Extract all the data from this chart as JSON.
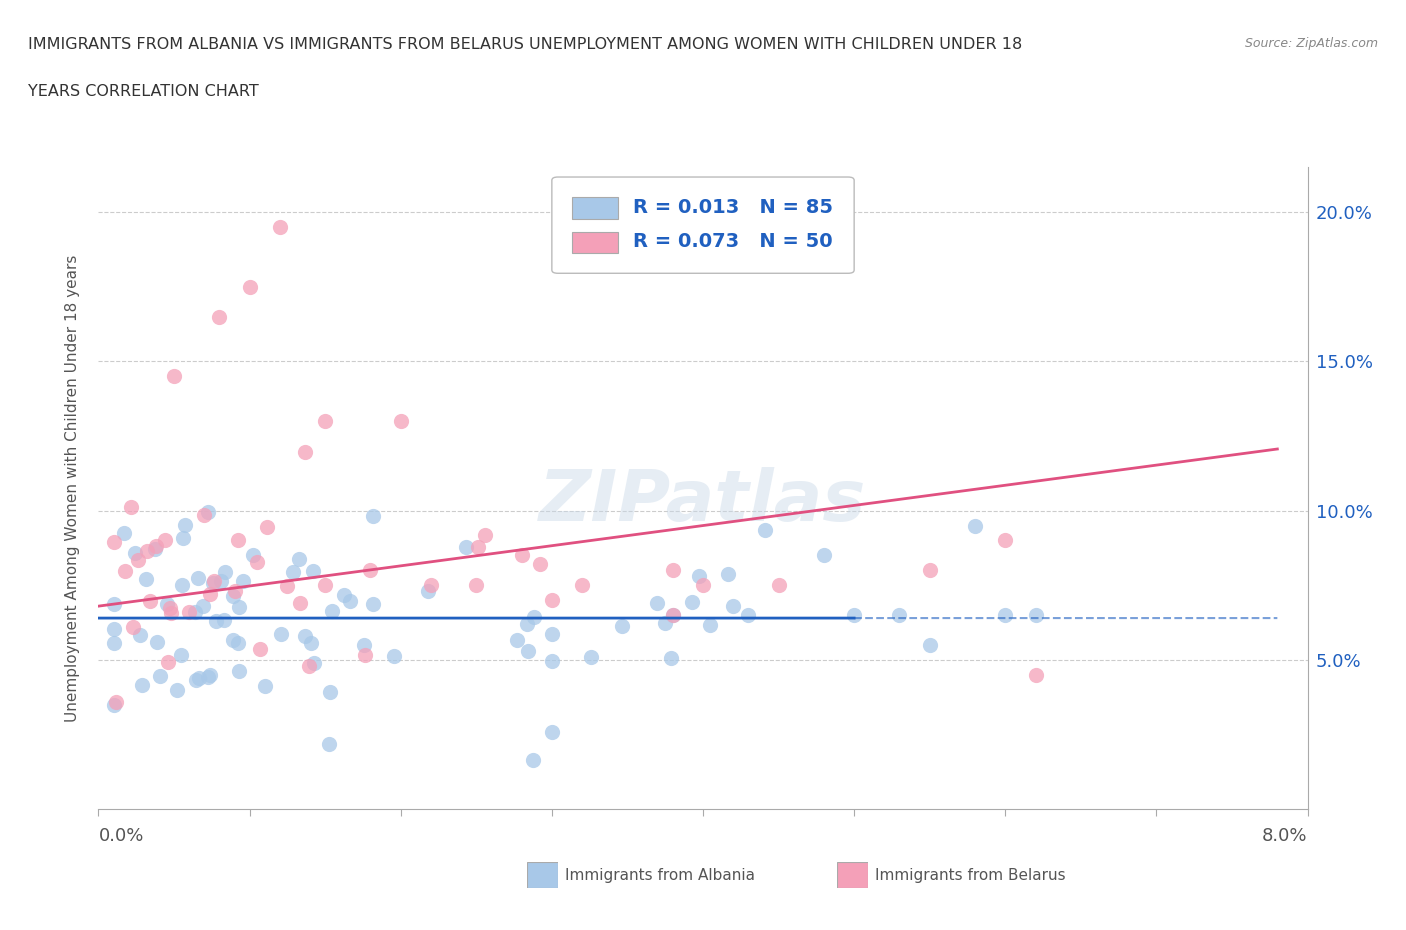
{
  "title_line1": "IMMIGRANTS FROM ALBANIA VS IMMIGRANTS FROM BELARUS UNEMPLOYMENT AMONG WOMEN WITH CHILDREN UNDER 18",
  "title_line2": "YEARS CORRELATION CHART",
  "source": "Source: ZipAtlas.com",
  "ylabel": "Unemployment Among Women with Children Under 18 years",
  "ytick_labels": [
    "5.0%",
    "10.0%",
    "15.0%",
    "20.0%"
  ],
  "ytick_values": [
    0.05,
    0.1,
    0.15,
    0.2
  ],
  "xlim": [
    0.0,
    0.08
  ],
  "ylim": [
    0.0,
    0.215
  ],
  "albania_color": "#a8c8e8",
  "belarus_color": "#f4a0b8",
  "albania_line_color": "#2060c0",
  "belarus_line_color": "#e05080",
  "legend_text_color": "#2060c0",
  "legend_R_albania": "R = 0.013",
  "legend_N_albania": "N = 85",
  "legend_R_belarus": "R = 0.073",
  "legend_N_belarus": "N = 50",
  "label_albania": "Immigrants from Albania",
  "label_belarus": "Immigrants from Belarus",
  "watermark": "ZIPatlas",
  "background_color": "#ffffff",
  "grid_color": "#cccccc",
  "tick_color": "#aaaaaa",
  "text_color": "#555555",
  "title_color": "#333333"
}
